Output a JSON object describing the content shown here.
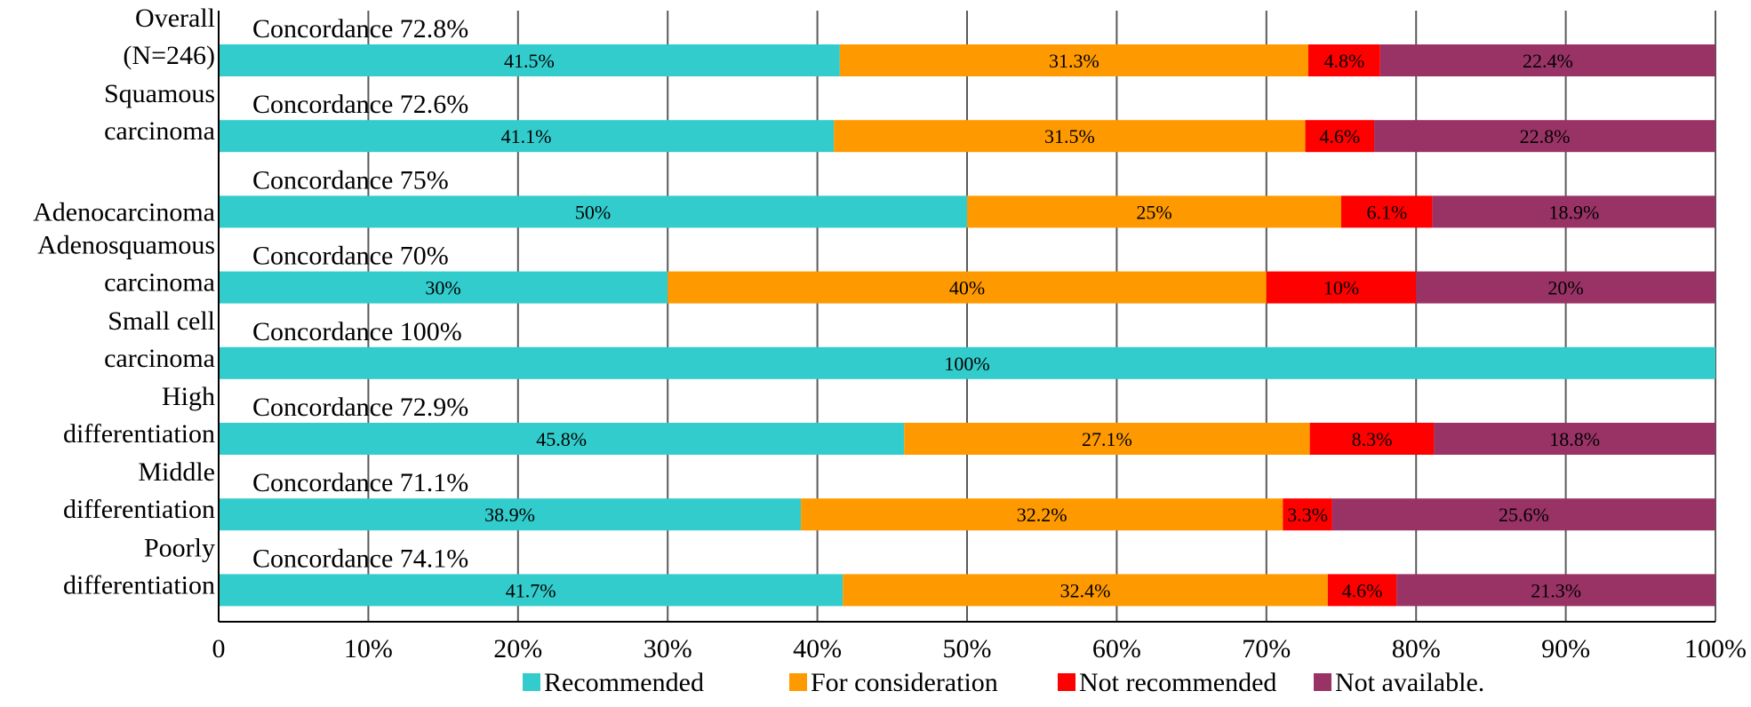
{
  "chart_data": {
    "type": "bar",
    "orientation": "horizontal",
    "stacked": true,
    "title": "",
    "xlabel": "",
    "ylabel": "",
    "xlim": [
      0,
      100
    ],
    "x_ticks": [
      "0",
      "10%",
      "20%",
      "30%",
      "40%",
      "50%",
      "60%",
      "70%",
      "80%",
      "90%",
      "100%"
    ],
    "grid": true,
    "legend_position": "bottom",
    "categories": [
      {
        "label_lines": [
          "Overall",
          "(N=246)"
        ],
        "concordance": "Concordance 72.8%"
      },
      {
        "label_lines": [
          "Squamous",
          "carcinoma"
        ],
        "concordance": "Concordance 72.6%"
      },
      {
        "label_lines": [
          "Adenocarcinoma"
        ],
        "concordance": "Concordance 75%"
      },
      {
        "label_lines": [
          "Adenosquamous",
          "carcinoma"
        ],
        "concordance": "Concordance 70%"
      },
      {
        "label_lines": [
          "Small cell",
          "carcinoma"
        ],
        "concordance": "Concordance 100%"
      },
      {
        "label_lines": [
          "High",
          "differentiation"
        ],
        "concordance": "Concordance 72.9%"
      },
      {
        "label_lines": [
          "Middle",
          "differentiation"
        ],
        "concordance": "Concordance 71.1%"
      },
      {
        "label_lines": [
          "Poorly",
          "differentiation"
        ],
        "concordance": "Concordance 74.1%"
      }
    ],
    "series": [
      {
        "name": "Recommended",
        "color": "#33cccc",
        "values": [
          41.5,
          41.1,
          50,
          30,
          100,
          45.8,
          38.9,
          41.7
        ],
        "labels": [
          "41.5%",
          "41.1%",
          "50%",
          "30%",
          "100%",
          "45.8%",
          "38.9%",
          "41.7%"
        ]
      },
      {
        "name": "For consideration",
        "color": "#ff9900",
        "values": [
          31.3,
          31.5,
          25,
          40,
          0,
          27.1,
          32.2,
          32.4
        ],
        "labels": [
          "31.3%",
          "31.5%",
          "25%",
          "40%",
          "",
          "27.1%",
          "32.2%",
          "32.4%"
        ]
      },
      {
        "name": "Not recommended",
        "color": "#ff0000",
        "values": [
          4.8,
          4.6,
          6.1,
          10,
          0,
          8.3,
          3.3,
          4.6
        ],
        "labels": [
          "4.8%",
          "4.6%",
          "6.1%",
          "10%",
          "",
          "8.3%",
          "3.3%",
          "4.6%"
        ]
      },
      {
        "name": "Not available.",
        "color": "#993366",
        "values": [
          22.4,
          22.8,
          18.9,
          20,
          0,
          18.8,
          25.6,
          21.3
        ],
        "labels": [
          "22.4%",
          "22.8%",
          "18.9%",
          "20%",
          "",
          "18.8%",
          "25.6%",
          "21.3%"
        ]
      }
    ]
  }
}
